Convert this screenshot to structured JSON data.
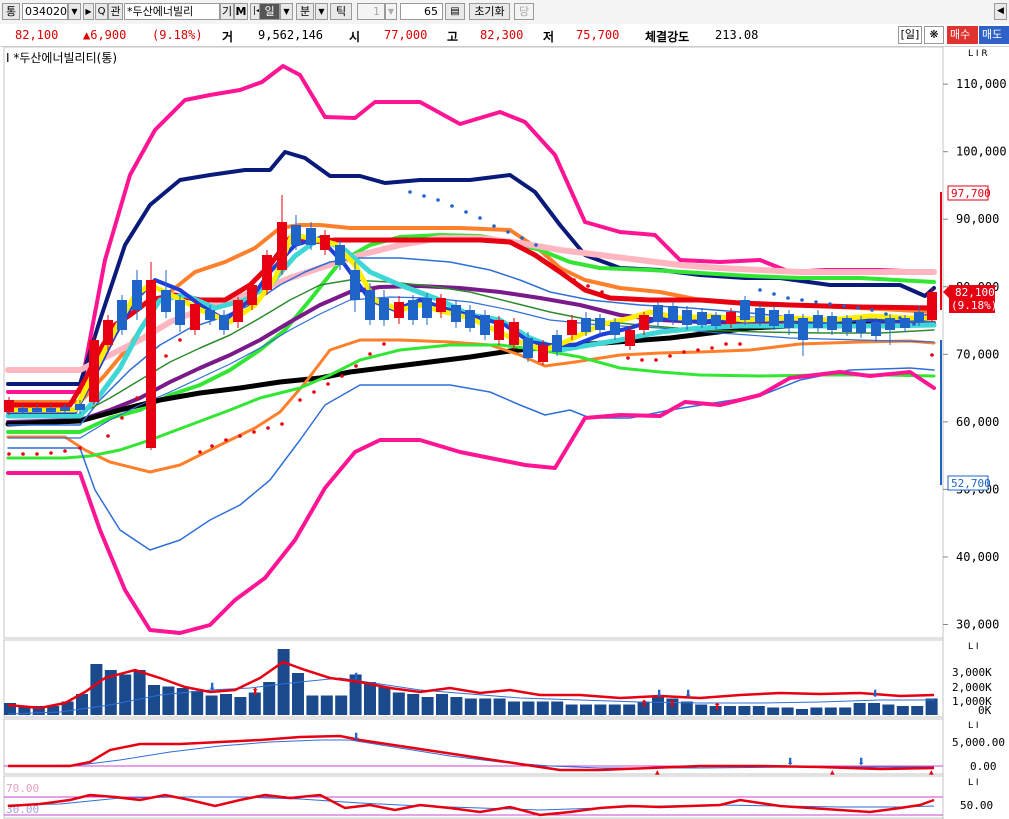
{
  "toolbar": {
    "tong_label": "통",
    "code_value": "034020",
    "search_label": "Q",
    "ban_label": "관",
    "stock_name": "*두산에너빌리",
    "gi_label": "기",
    "m_label": "M",
    "il_label": "일",
    "bun_label": "분",
    "tik_label": "틱",
    "period_num": "1",
    "count_value": "65",
    "reset_label": "초기화",
    "dang_label": "당"
  },
  "quote": {
    "price": "82,100",
    "change": "▲6,900",
    "change_pct": "(9.18%)",
    "vol_label": "거",
    "volume": "9,562,146",
    "open_label": "시",
    "open": "77,000",
    "high_label": "고",
    "high": "82,300",
    "low_label": "저",
    "low": "75,700",
    "strength_label": "체결강도",
    "strength": "213.08",
    "period_btn": "[일]",
    "buy_label": "매수",
    "sell_label": "매도"
  },
  "chart_title": "I *두산에너빌리티(통)",
  "price_axis": {
    "ticks": [
      "110,000",
      "100,000",
      "90,000",
      "80,000",
      "70,000",
      "60,000",
      "50,000",
      "40,000",
      "30,000"
    ],
    "values": [
      110000,
      100000,
      90000,
      80000,
      70000,
      60000,
      50000,
      40000,
      30000
    ],
    "range": [
      28000,
      115500
    ],
    "high_marker": "97,700",
    "low_marker": "52,700",
    "current_marker": "82,100",
    "current_pct": "(9.18%)",
    "lir": "L I R"
  },
  "volume_axis": {
    "ticks": [
      "3,000K",
      "2,000K",
      "1,000K",
      "0K"
    ],
    "lir": "L I"
  },
  "osc_axis": {
    "ticks": [
      "5,000.00",
      "0.00"
    ],
    "lir": "L I"
  },
  "rsi_axis": {
    "ticks": [
      "50.00"
    ],
    "levels": [
      "70.00",
      "30.00"
    ],
    "lir": "L I"
  },
  "colors": {
    "up": "#e60012",
    "down": "#1f64c8",
    "boll_outer": "#ff1493",
    "navy": "#0a1a7a",
    "orange": "#ff7f2a",
    "green": "#33e633",
    "pink": "#ffb6c1",
    "purple": "#7a1a8a",
    "black": "#000000",
    "yellow": "#ffee00",
    "cyan": "#3fd6d6",
    "blue": "#1f3fd9"
  }
}
